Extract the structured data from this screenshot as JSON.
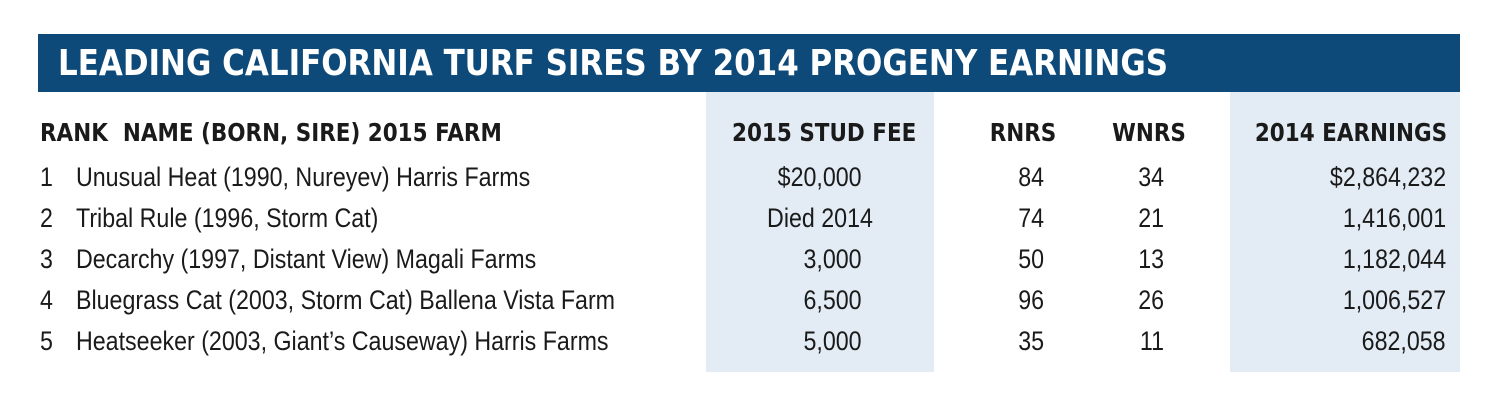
{
  "title": "LEADING CALIFORNIA TURF SIRES BY 2014 PROGENY EARNINGS",
  "colors": {
    "title_bar": "#0d4a7a",
    "title_text": "#ffffff",
    "column_shade": "#e3ecf4"
  },
  "headers": {
    "left": "RANK  NAME (BORN, SIRE) 2015 FARM",
    "fee": "2015 STUD FEE",
    "rnrs": "RNRS",
    "wnrs": "WNRS",
    "earnings": "2014 EARNINGS"
  },
  "rows": [
    {
      "rank": "1",
      "name": "Unusual Heat (1990, Nureyev) Harris Farms",
      "fee": "$20,000",
      "rnrs": "84",
      "wnrs": "34",
      "earnings": "$2,864,232"
    },
    {
      "rank": "2",
      "name": "Tribal Rule (1996, Storm Cat)",
      "fee": "Died 2014",
      "rnrs": "74",
      "wnrs": "21",
      "earnings": "1,416,001"
    },
    {
      "rank": "3",
      "name": "Decarchy (1997, Distant View) Magali Farms",
      "fee": "3,000",
      "rnrs": "50",
      "wnrs": "13",
      "earnings": "1,182,044"
    },
    {
      "rank": "4",
      "name": "Bluegrass Cat (2003, Storm Cat) Ballena Vista Farm",
      "fee": "6,500",
      "rnrs": "96",
      "wnrs": "26",
      "earnings": "1,006,527"
    },
    {
      "rank": "5",
      "name": "Heatseeker (2003, Giant’s Causeway) Harris Farms",
      "fee": "5,000",
      "rnrs": "35",
      "wnrs": "11",
      "earnings": "682,058"
    }
  ]
}
